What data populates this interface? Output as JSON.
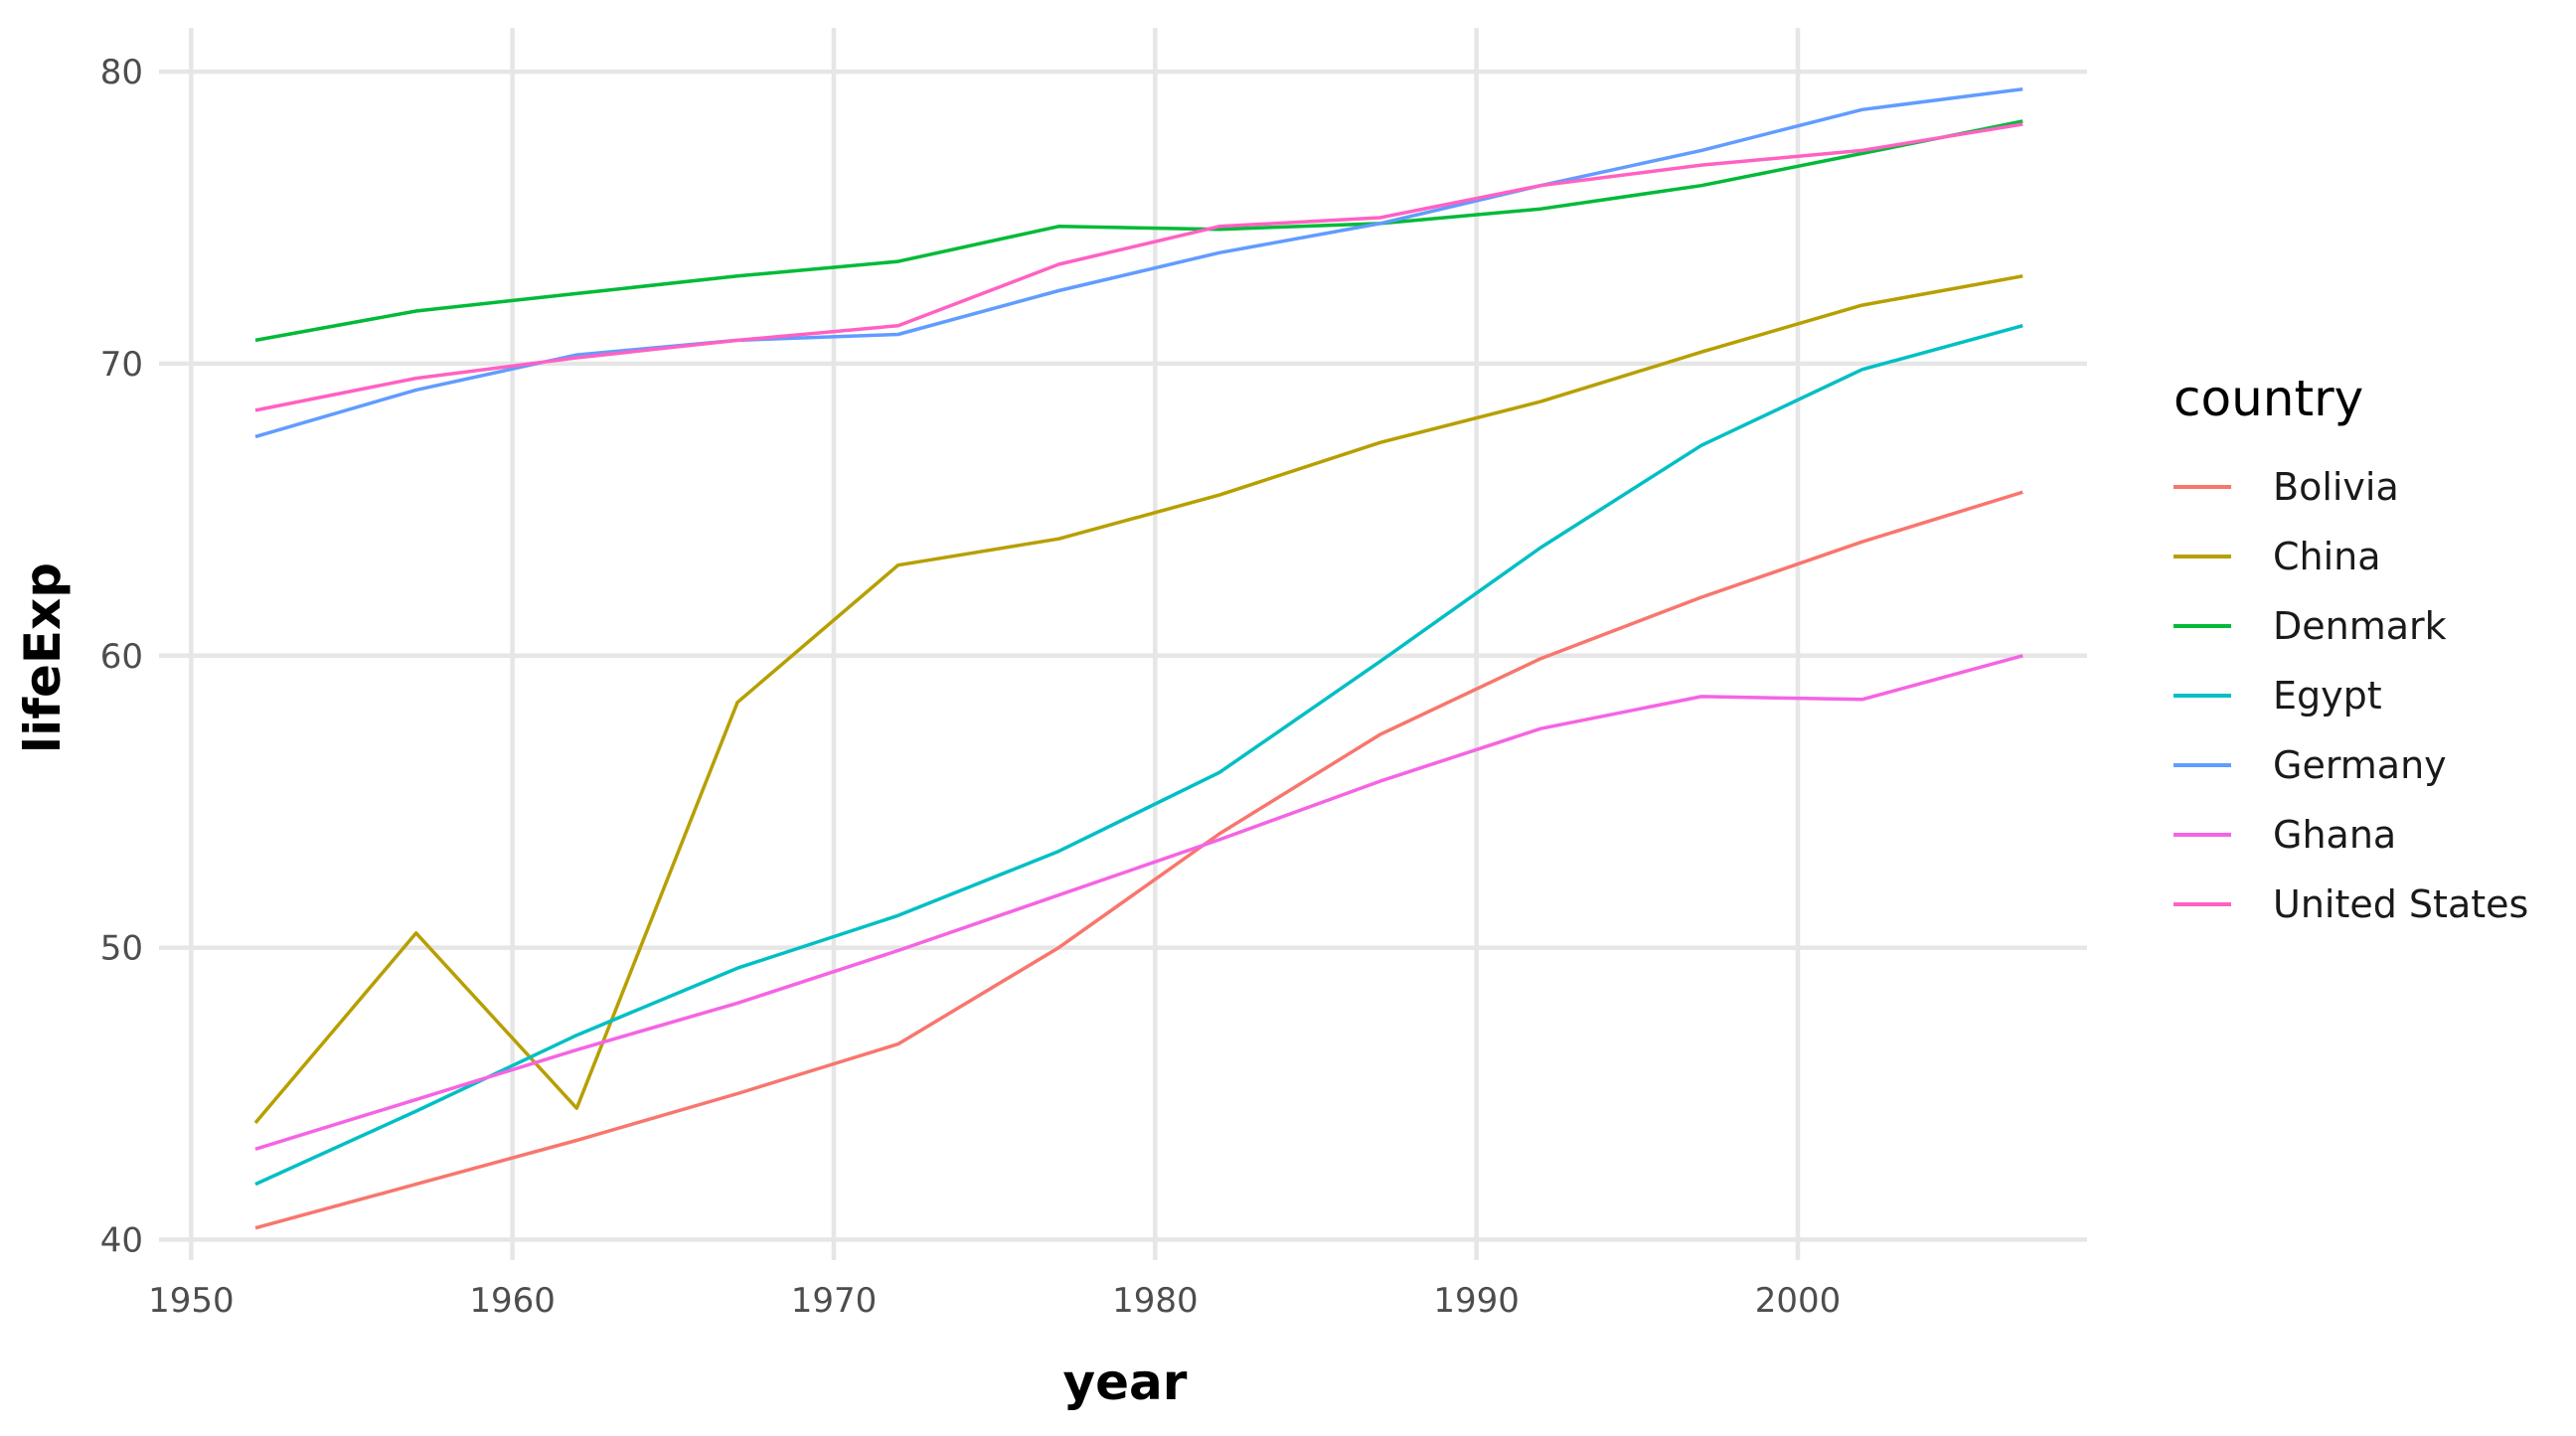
{
  "chart_data": {
    "type": "line",
    "title": "",
    "xlabel": "year",
    "ylabel": "lifeExp",
    "xlim": [
      1949,
      2009
    ],
    "ylim": [
      39.3,
      81.5
    ],
    "x_ticks": [
      1950,
      1960,
      1970,
      1980,
      1990,
      2000
    ],
    "y_ticks": [
      40,
      50,
      60,
      70,
      80
    ],
    "grid": true,
    "legend_title": "country",
    "legend_position": "right",
    "x": [
      1952,
      1957,
      1962,
      1967,
      1972,
      1977,
      1982,
      1987,
      1992,
      1997,
      2002,
      2007
    ],
    "series": [
      {
        "name": "Bolivia",
        "color": "#F8766D",
        "values": [
          40.4,
          41.9,
          43.4,
          45.0,
          46.7,
          50.0,
          53.9,
          57.3,
          59.9,
          62.0,
          63.9,
          65.6
        ]
      },
      {
        "name": "China",
        "color": "#B79F00",
        "values": [
          44.0,
          50.5,
          44.5,
          58.4,
          63.1,
          64.0,
          65.5,
          67.3,
          68.7,
          70.4,
          72.0,
          73.0
        ]
      },
      {
        "name": "Denmark",
        "color": "#00BA38",
        "values": [
          70.8,
          71.8,
          72.4,
          73.0,
          73.5,
          74.7,
          74.6,
          74.8,
          75.3,
          76.1,
          77.2,
          78.3
        ]
      },
      {
        "name": "Egypt",
        "color": "#00BFC4",
        "values": [
          41.9,
          44.4,
          47.0,
          49.3,
          51.1,
          53.3,
          56.0,
          59.8,
          63.7,
          67.2,
          69.8,
          71.3
        ]
      },
      {
        "name": "Germany",
        "color": "#619CFF",
        "values": [
          67.5,
          69.1,
          70.3,
          70.8,
          71.0,
          72.5,
          73.8,
          74.8,
          76.1,
          77.3,
          78.7,
          79.4
        ]
      },
      {
        "name": "Ghana",
        "color": "#F564E3",
        "values": [
          43.1,
          44.8,
          46.5,
          48.1,
          49.9,
          51.8,
          53.7,
          55.7,
          57.5,
          58.6,
          58.5,
          60.0
        ]
      },
      {
        "name": "United States",
        "color": "#FF61C3",
        "values": [
          68.4,
          69.5,
          70.2,
          70.8,
          71.3,
          73.4,
          74.7,
          75.0,
          76.1,
          76.8,
          77.3,
          78.2
        ]
      }
    ]
  }
}
